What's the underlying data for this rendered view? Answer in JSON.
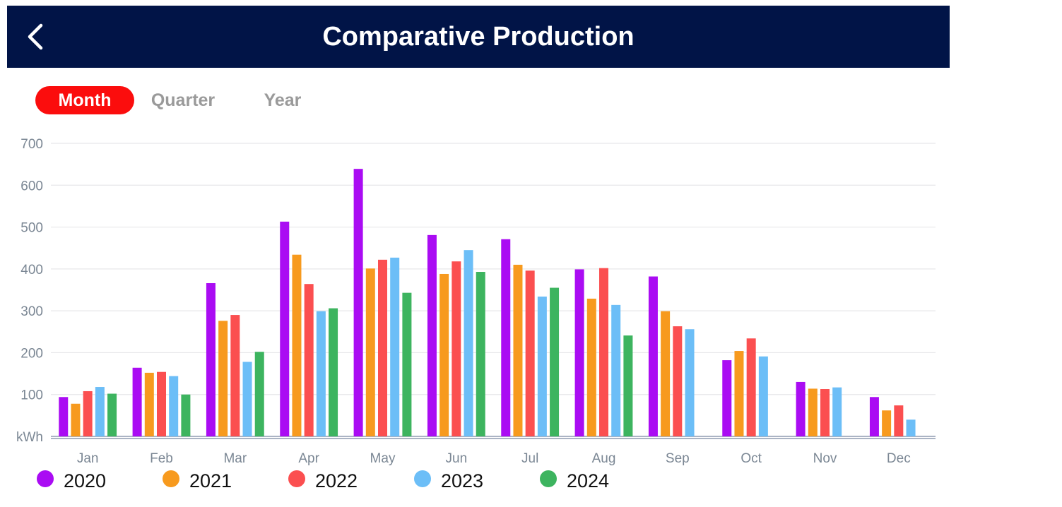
{
  "header": {
    "title": "Comparative Production",
    "back_icon": "chevron-left-icon",
    "background": "#011447"
  },
  "tabs": [
    {
      "label": "Month",
      "active": true
    },
    {
      "label": "Quarter",
      "active": false
    },
    {
      "label": "Year",
      "active": false
    }
  ],
  "colors": {
    "accent": "#fb0d0d",
    "tab_inactive": "#9a9a9a"
  },
  "chart_data": {
    "type": "bar",
    "title": "",
    "xlabel": "",
    "ylabel": "kWh",
    "ylim": [
      0,
      700
    ],
    "yticks": [
      "kWh",
      "100",
      "200",
      "300",
      "400",
      "500",
      "600",
      "700"
    ],
    "grid": true,
    "legend_position": "bottom-left",
    "categories": [
      "Jan",
      "Feb",
      "Mar",
      "Apr",
      "May",
      "Jun",
      "Jul",
      "Aug",
      "Sep",
      "Oct",
      "Nov",
      "Dec"
    ],
    "series": [
      {
        "name": "2020",
        "color": "#aa0cf3",
        "values": [
          94,
          164,
          366,
          513,
          639,
          481,
          471,
          399,
          382,
          182,
          130,
          94
        ]
      },
      {
        "name": "2021",
        "color": "#f79a1e",
        "values": [
          78,
          152,
          276,
          434,
          401,
          388,
          410,
          329,
          299,
          204,
          114,
          62
        ]
      },
      {
        "name": "2022",
        "color": "#fb4f50",
        "values": [
          108,
          154,
          290,
          364,
          422,
          418,
          396,
          402,
          263,
          234,
          113,
          74
        ]
      },
      {
        "name": "2023",
        "color": "#6cbef7",
        "values": [
          118,
          144,
          178,
          299,
          427,
          445,
          334,
          314,
          256,
          191,
          117,
          40
        ]
      },
      {
        "name": "2024",
        "color": "#3db45f",
        "values": [
          102,
          100,
          202,
          306,
          343,
          393,
          355,
          241,
          null,
          null,
          null,
          null
        ]
      }
    ]
  }
}
